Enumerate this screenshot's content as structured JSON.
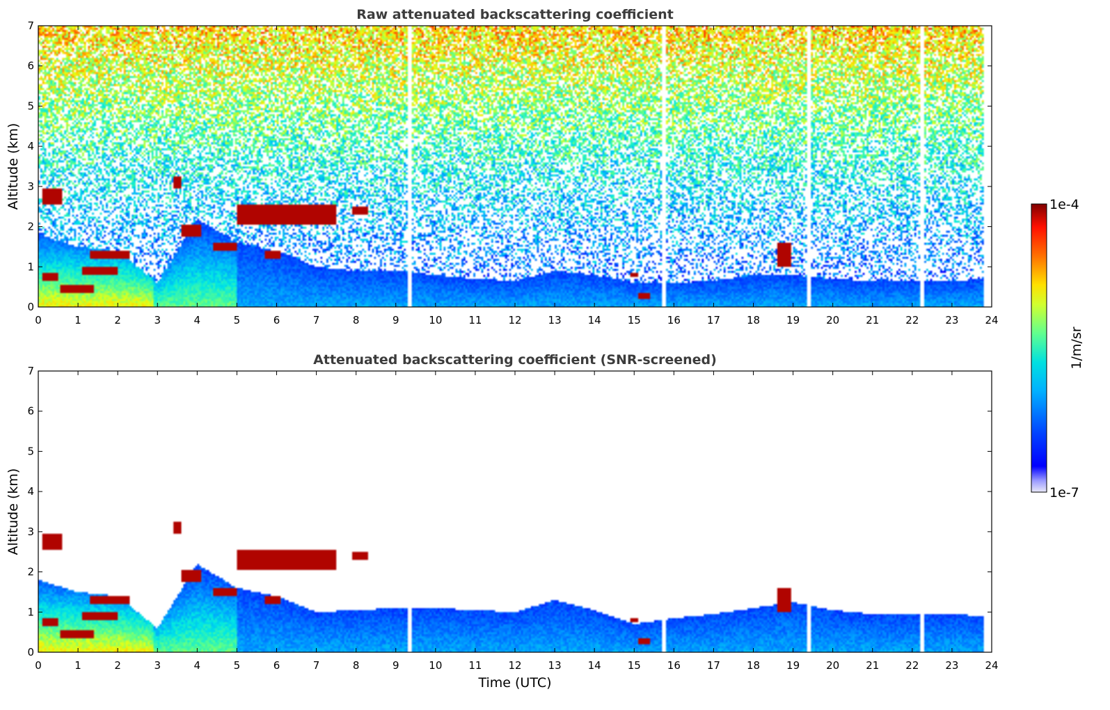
{
  "chart_data": [
    {
      "type": "heatmap",
      "title": "Raw attenuated backscattering coefficient",
      "xlabel": "",
      "ylabel": "Altitude (km)",
      "xlim": [
        0,
        24
      ],
      "ylim": [
        0,
        7
      ],
      "x_ticks": [
        "0",
        "1",
        "2",
        "3",
        "4",
        "5",
        "6",
        "7",
        "8",
        "9",
        "10",
        "11",
        "12",
        "13",
        "14",
        "15",
        "16",
        "17",
        "18",
        "19",
        "20",
        "21",
        "22",
        "23",
        "24"
      ],
      "y_ticks": [
        "0",
        "1",
        "2",
        "3",
        "4",
        "5",
        "6",
        "7"
      ],
      "data_end_hour": 23.8,
      "screened": false,
      "gaps_hours": [
        9.35,
        15.75,
        19.4,
        22.25
      ],
      "boundary_layer_top_km": [
        [
          0,
          1.8
        ],
        [
          1,
          1.5
        ],
        [
          2,
          1.4
        ],
        [
          3,
          0.6
        ],
        [
          4,
          2.2
        ],
        [
          5,
          1.6
        ],
        [
          6,
          1.4
        ],
        [
          7,
          1.0
        ],
        [
          8,
          0.9
        ],
        [
          9,
          0.9
        ],
        [
          10,
          0.8
        ],
        [
          11,
          0.7
        ],
        [
          12,
          0.65
        ],
        [
          13,
          0.9
        ],
        [
          14,
          0.8
        ],
        [
          15,
          0.6
        ],
        [
          16,
          0.6
        ],
        [
          17,
          0.65
        ],
        [
          18,
          0.8
        ],
        [
          19,
          0.8
        ],
        [
          20,
          0.7
        ],
        [
          21,
          0.65
        ],
        [
          22,
          0.65
        ],
        [
          23,
          0.65
        ],
        [
          23.8,
          0.7
        ]
      ],
      "cloud_layers": [
        {
          "t0": 0.1,
          "t1": 0.6,
          "alt_km": 2.75,
          "thick_km": 0.2
        },
        {
          "t0": 0.55,
          "t1": 1.4,
          "alt_km": 0.45,
          "thick_km": 0.12
        },
        {
          "t0": 0.1,
          "t1": 0.5,
          "alt_km": 0.75,
          "thick_km": 0.08
        },
        {
          "t0": 1.3,
          "t1": 2.3,
          "alt_km": 1.3,
          "thick_km": 0.12
        },
        {
          "t0": 1.1,
          "t1": 2.0,
          "alt_km": 0.9,
          "thick_km": 0.1
        },
        {
          "t0": 3.4,
          "t1": 3.6,
          "alt_km": 3.1,
          "thick_km": 0.15
        },
        {
          "t0": 3.6,
          "t1": 4.1,
          "alt_km": 1.9,
          "thick_km": 0.15
        },
        {
          "t0": 4.4,
          "t1": 5.0,
          "alt_km": 1.5,
          "thick_km": 0.12
        },
        {
          "t0": 5.0,
          "t1": 7.5,
          "alt_km": 2.3,
          "thick_km": 0.25
        },
        {
          "t0": 7.9,
          "t1": 8.3,
          "alt_km": 2.4,
          "thick_km": 0.12
        },
        {
          "t0": 5.7,
          "t1": 6.1,
          "alt_km": 1.3,
          "thick_km": 0.1
        },
        {
          "t0": 18.6,
          "t1": 18.95,
          "alt_km": 1.3,
          "thick_km": 0.3
        },
        {
          "t0": 14.9,
          "t1": 15.1,
          "alt_km": 0.8,
          "thick_km": 0.06
        },
        {
          "t0": 15.1,
          "t1": 15.4,
          "alt_km": 0.28,
          "thick_km": 0.06
        }
      ]
    },
    {
      "type": "heatmap",
      "title": "Attenuated backscattering coefficient (SNR-screened)",
      "xlabel": "Time (UTC)",
      "ylabel": "Altitude (km)",
      "xlim": [
        0,
        24
      ],
      "ylim": [
        0,
        7
      ],
      "x_ticks": [
        "0",
        "1",
        "2",
        "3",
        "4",
        "5",
        "6",
        "7",
        "8",
        "9",
        "10",
        "11",
        "12",
        "13",
        "14",
        "15",
        "16",
        "17",
        "18",
        "19",
        "20",
        "21",
        "22",
        "23",
        "24"
      ],
      "y_ticks": [
        "0",
        "1",
        "2",
        "3",
        "4",
        "5",
        "6",
        "7"
      ],
      "data_end_hour": 23.8,
      "screened": true,
      "gaps_hours": [
        9.35,
        15.75,
        19.4,
        22.25
      ],
      "boundary_layer_top_km": [
        [
          0,
          1.8
        ],
        [
          1,
          1.5
        ],
        [
          2,
          1.4
        ],
        [
          3,
          0.6
        ],
        [
          4,
          2.2
        ],
        [
          5,
          1.6
        ],
        [
          6,
          1.4
        ],
        [
          7,
          1.0
        ],
        [
          8,
          1.05
        ],
        [
          9,
          1.1
        ],
        [
          10,
          1.1
        ],
        [
          11,
          1.05
        ],
        [
          12,
          1.0
        ],
        [
          13,
          1.3
        ],
        [
          14,
          1.05
        ],
        [
          15,
          0.7
        ],
        [
          16,
          0.85
        ],
        [
          17,
          0.95
        ],
        [
          18,
          1.1
        ],
        [
          19,
          1.25
        ],
        [
          20,
          1.05
        ],
        [
          21,
          0.95
        ],
        [
          22,
          0.95
        ],
        [
          23,
          0.95
        ],
        [
          23.8,
          0.9
        ]
      ],
      "cloud_layers": [
        {
          "t0": 0.1,
          "t1": 0.6,
          "alt_km": 2.75,
          "thick_km": 0.2
        },
        {
          "t0": 0.55,
          "t1": 1.4,
          "alt_km": 0.45,
          "thick_km": 0.12
        },
        {
          "t0": 0.1,
          "t1": 0.5,
          "alt_km": 0.75,
          "thick_km": 0.08
        },
        {
          "t0": 1.3,
          "t1": 2.3,
          "alt_km": 1.3,
          "thick_km": 0.12
        },
        {
          "t0": 1.1,
          "t1": 2.0,
          "alt_km": 0.9,
          "thick_km": 0.1
        },
        {
          "t0": 3.4,
          "t1": 3.6,
          "alt_km": 3.1,
          "thick_km": 0.15
        },
        {
          "t0": 3.6,
          "t1": 4.1,
          "alt_km": 1.9,
          "thick_km": 0.15
        },
        {
          "t0": 4.4,
          "t1": 5.0,
          "alt_km": 1.5,
          "thick_km": 0.12
        },
        {
          "t0": 5.0,
          "t1": 7.5,
          "alt_km": 2.3,
          "thick_km": 0.25
        },
        {
          "t0": 7.9,
          "t1": 8.3,
          "alt_km": 2.4,
          "thick_km": 0.12
        },
        {
          "t0": 5.7,
          "t1": 6.1,
          "alt_km": 1.3,
          "thick_km": 0.1
        },
        {
          "t0": 18.6,
          "t1": 18.95,
          "alt_km": 1.3,
          "thick_km": 0.3
        },
        {
          "t0": 14.9,
          "t1": 15.1,
          "alt_km": 0.8,
          "thick_km": 0.06
        },
        {
          "t0": 15.1,
          "t1": 15.4,
          "alt_km": 0.28,
          "thick_km": 0.06
        }
      ]
    }
  ],
  "colorbar": {
    "label": "1/m/sr",
    "max_label": "1e-4",
    "min_label": "1e-7",
    "scale": "log",
    "colormap": "jet",
    "min_value": 1e-07,
    "max_value": 0.0001
  }
}
